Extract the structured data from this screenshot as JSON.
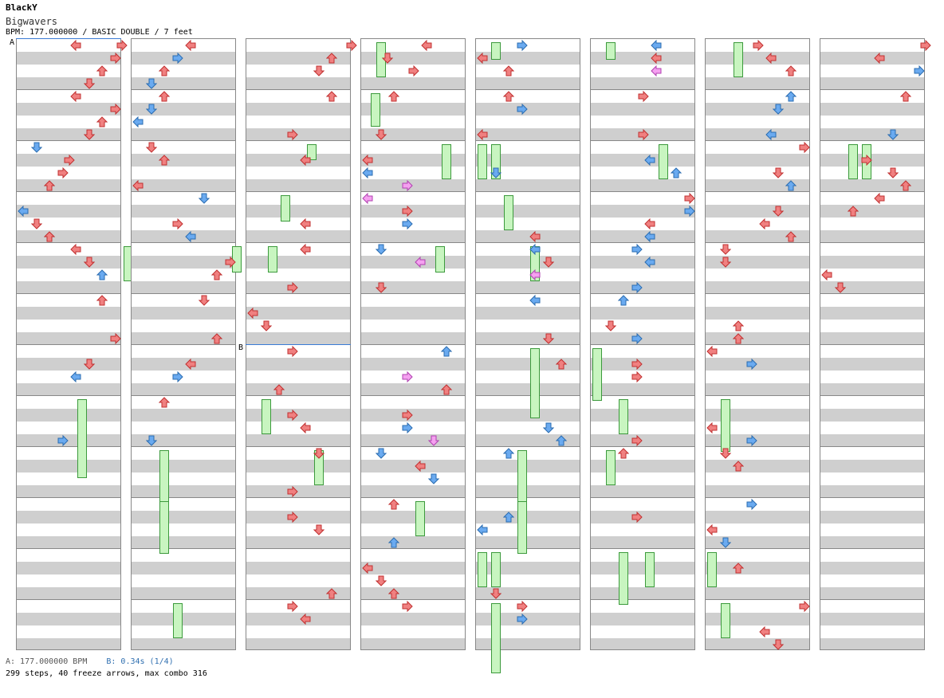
{
  "header": {
    "artist": "BlackY",
    "title": "Bigwavers",
    "info": "BPM: 177.000000 / BASIC DOUBLE / 7 feet"
  },
  "footer": {
    "bpm_a": "A: 177.000000 BPM",
    "bpm_b": "B: 0.34s (1/4)",
    "stats": "299 steps, 40 freeze arrows, max combo 316"
  },
  "markers": {
    "a": "A",
    "b": "B"
  },
  "colors": {
    "red": "#f08080",
    "blue": "#6aaaf0",
    "pink": "#f5a0f0",
    "freeze": "#c8f5c0"
  },
  "chart": {
    "columns": 8,
    "measures_per_column": 12,
    "lanes": 8,
    "notes": [
      [
        [
          0,
          7.5,
          "r"
        ],
        [
          0,
          7,
          "r"
        ],
        [
          0,
          6,
          "r"
        ],
        [
          0,
          5,
          "r"
        ],
        [
          0,
          4,
          "r"
        ],
        [
          1,
          7,
          "r"
        ],
        [
          1,
          6,
          "r"
        ],
        [
          1,
          5,
          "r"
        ],
        [
          1,
          4,
          "r"
        ],
        [
          2,
          3.5,
          "r"
        ],
        [
          2,
          3,
          "r"
        ],
        [
          2,
          2,
          "r"
        ],
        [
          2,
          1,
          "b"
        ],
        [
          3,
          0,
          "b"
        ],
        [
          3,
          1,
          "r"
        ],
        [
          3,
          2,
          "r"
        ],
        [
          4,
          4,
          "r"
        ],
        [
          4,
          5,
          "r"
        ],
        [
          4,
          6,
          "b"
        ],
        [
          5,
          7,
          "r"
        ],
        [
          5,
          6,
          "r"
        ],
        [
          6,
          5,
          "r"
        ],
        [
          6,
          4,
          "b"
        ],
        [
          7,
          3,
          "b"
        ]
      ],
      [
        [
          0,
          4,
          "r"
        ],
        [
          0,
          3,
          "b"
        ],
        [
          0,
          2,
          "r"
        ],
        [
          0,
          1,
          "b"
        ],
        [
          1,
          2,
          "r"
        ],
        [
          1,
          1,
          "b"
        ],
        [
          1,
          0,
          "b"
        ],
        [
          2,
          0,
          "r"
        ],
        [
          2,
          1,
          "r"
        ],
        [
          2,
          2,
          "r"
        ],
        [
          3,
          3,
          "r"
        ],
        [
          3,
          4,
          "b"
        ],
        [
          3,
          5,
          "b"
        ],
        [
          4,
          7,
          "r"
        ],
        [
          4,
          6,
          "r"
        ],
        [
          5,
          6,
          "r"
        ],
        [
          5,
          5,
          "r"
        ],
        [
          6,
          4,
          "r"
        ],
        [
          6,
          3,
          "b"
        ],
        [
          7,
          1,
          "b"
        ],
        [
          7,
          2,
          "r"
        ]
      ],
      [
        [
          0,
          7.5,
          "r"
        ],
        [
          0,
          6,
          "r"
        ],
        [
          0,
          5,
          "r"
        ],
        [
          1,
          3,
          "r"
        ],
        [
          1,
          6,
          "r"
        ],
        [
          2,
          4,
          "r"
        ],
        [
          3,
          4,
          "r"
        ],
        [
          4,
          3,
          "r"
        ],
        [
          4,
          4,
          "r"
        ],
        [
          5,
          0,
          "r"
        ],
        [
          5,
          1,
          "r"
        ],
        [
          6,
          2,
          "r"
        ],
        [
          6,
          3,
          "r"
        ],
        [
          7,
          3,
          "r"
        ],
        [
          7,
          4,
          "r"
        ],
        [
          8,
          3,
          "r"
        ],
        [
          8,
          5,
          "r"
        ],
        [
          9,
          3,
          "r"
        ],
        [
          9,
          5,
          "r"
        ],
        [
          10,
          6,
          "r"
        ],
        [
          11,
          3,
          "r"
        ],
        [
          11,
          4,
          "r"
        ]
      ],
      [
        [
          0,
          4.5,
          "r"
        ],
        [
          0,
          1.5,
          "r"
        ],
        [
          0,
          3.5,
          "r"
        ],
        [
          1,
          1,
          "r"
        ],
        [
          1,
          2,
          "r"
        ],
        [
          2,
          0,
          "r"
        ],
        [
          2,
          0,
          "b"
        ],
        [
          2,
          3,
          "p"
        ],
        [
          3,
          0,
          "p"
        ],
        [
          3,
          3,
          "r"
        ],
        [
          3,
          3,
          "b"
        ],
        [
          4,
          1,
          "r"
        ],
        [
          4,
          1,
          "b"
        ],
        [
          4,
          4,
          "p"
        ],
        [
          6,
          3,
          "p"
        ],
        [
          6,
          6,
          "r"
        ],
        [
          6,
          6,
          "b"
        ],
        [
          7,
          3,
          "r"
        ],
        [
          7,
          3,
          "b"
        ],
        [
          7,
          5,
          "p"
        ],
        [
          8,
          1,
          "b"
        ],
        [
          8,
          4,
          "r"
        ],
        [
          8,
          5,
          "b"
        ],
        [
          9,
          2,
          "b"
        ],
        [
          9,
          2,
          "r"
        ],
        [
          10,
          0,
          "r"
        ],
        [
          10,
          1,
          "r"
        ],
        [
          10,
          2,
          "r"
        ],
        [
          11,
          3,
          "r"
        ]
      ],
      [
        [
          0,
          3,
          "b"
        ],
        [
          0,
          0,
          "r"
        ],
        [
          0,
          2,
          "r"
        ],
        [
          1,
          0,
          "r"
        ],
        [
          1,
          2,
          "r"
        ],
        [
          1,
          3,
          "b"
        ],
        [
          2,
          1,
          "b"
        ],
        [
          3,
          4,
          "r"
        ],
        [
          4,
          4,
          "b"
        ],
        [
          4,
          5,
          "r"
        ],
        [
          4,
          4,
          "p"
        ],
        [
          5,
          5,
          "r"
        ],
        [
          5,
          4,
          "b"
        ],
        [
          6,
          6,
          "r"
        ],
        [
          7,
          5,
          "b"
        ],
        [
          7,
          6,
          "b"
        ],
        [
          8,
          2,
          "b"
        ],
        [
          9,
          2,
          "b"
        ],
        [
          9,
          0,
          "b"
        ],
        [
          10,
          1,
          "r"
        ],
        [
          11,
          3,
          "r"
        ],
        [
          11,
          3,
          "b"
        ]
      ],
      [
        [
          0,
          4.5,
          "b"
        ],
        [
          0,
          4.5,
          "r"
        ],
        [
          0,
          4.5,
          "p"
        ],
        [
          1,
          3.5,
          "r"
        ],
        [
          1,
          3.5,
          "r"
        ],
        [
          2,
          4,
          "b"
        ],
        [
          2,
          6,
          "b"
        ],
        [
          3,
          4,
          "b"
        ],
        [
          3,
          7,
          "r"
        ],
        [
          3,
          7,
          "b"
        ],
        [
          3,
          4,
          "r"
        ],
        [
          4,
          3,
          "b"
        ],
        [
          4,
          3,
          "b"
        ],
        [
          4,
          4,
          "b"
        ],
        [
          5,
          1,
          "r"
        ],
        [
          5,
          3,
          "b"
        ],
        [
          5,
          2,
          "b"
        ],
        [
          6,
          3,
          "r"
        ],
        [
          6,
          3,
          "r"
        ],
        [
          7,
          3,
          "r"
        ],
        [
          8,
          2,
          "r"
        ],
        [
          9,
          3,
          "r"
        ]
      ],
      [
        [
          0,
          3.5,
          "r"
        ],
        [
          0,
          4.5,
          "r"
        ],
        [
          0,
          6,
          "r"
        ],
        [
          1,
          4.5,
          "b"
        ],
        [
          1,
          6,
          "b"
        ],
        [
          1,
          5,
          "b"
        ],
        [
          2,
          5,
          "r"
        ],
        [
          2,
          6,
          "b"
        ],
        [
          2,
          7,
          "r"
        ],
        [
          3,
          5,
          "r"
        ],
        [
          3,
          4,
          "r"
        ],
        [
          3,
          6,
          "r"
        ],
        [
          4,
          1,
          "r"
        ],
        [
          4,
          1,
          "r"
        ],
        [
          5,
          2,
          "r"
        ],
        [
          5,
          2,
          "r"
        ],
        [
          6,
          0,
          "r"
        ],
        [
          6,
          3,
          "b"
        ],
        [
          7,
          0,
          "r"
        ],
        [
          7,
          3,
          "b"
        ],
        [
          8,
          1,
          "r"
        ],
        [
          8,
          2,
          "r"
        ],
        [
          9,
          0,
          "r"
        ],
        [
          9,
          1,
          "b"
        ],
        [
          9,
          3,
          "b"
        ],
        [
          10,
          2,
          "r"
        ],
        [
          11,
          4,
          "r"
        ],
        [
          11,
          5,
          "r"
        ],
        [
          11,
          7,
          "r"
        ]
      ],
      [
        [
          0,
          7.5,
          "r"
        ],
        [
          0,
          4,
          "r"
        ],
        [
          0,
          7,
          "b"
        ],
        [
          1,
          5,
          "b"
        ],
        [
          1,
          6,
          "r"
        ],
        [
          2,
          3,
          "r"
        ],
        [
          2,
          5,
          "r"
        ],
        [
          2,
          6,
          "r"
        ],
        [
          3,
          4,
          "r"
        ],
        [
          3,
          2,
          "r"
        ],
        [
          4,
          0,
          "r"
        ],
        [
          4,
          1,
          "r"
        ]
      ]
    ]
  }
}
